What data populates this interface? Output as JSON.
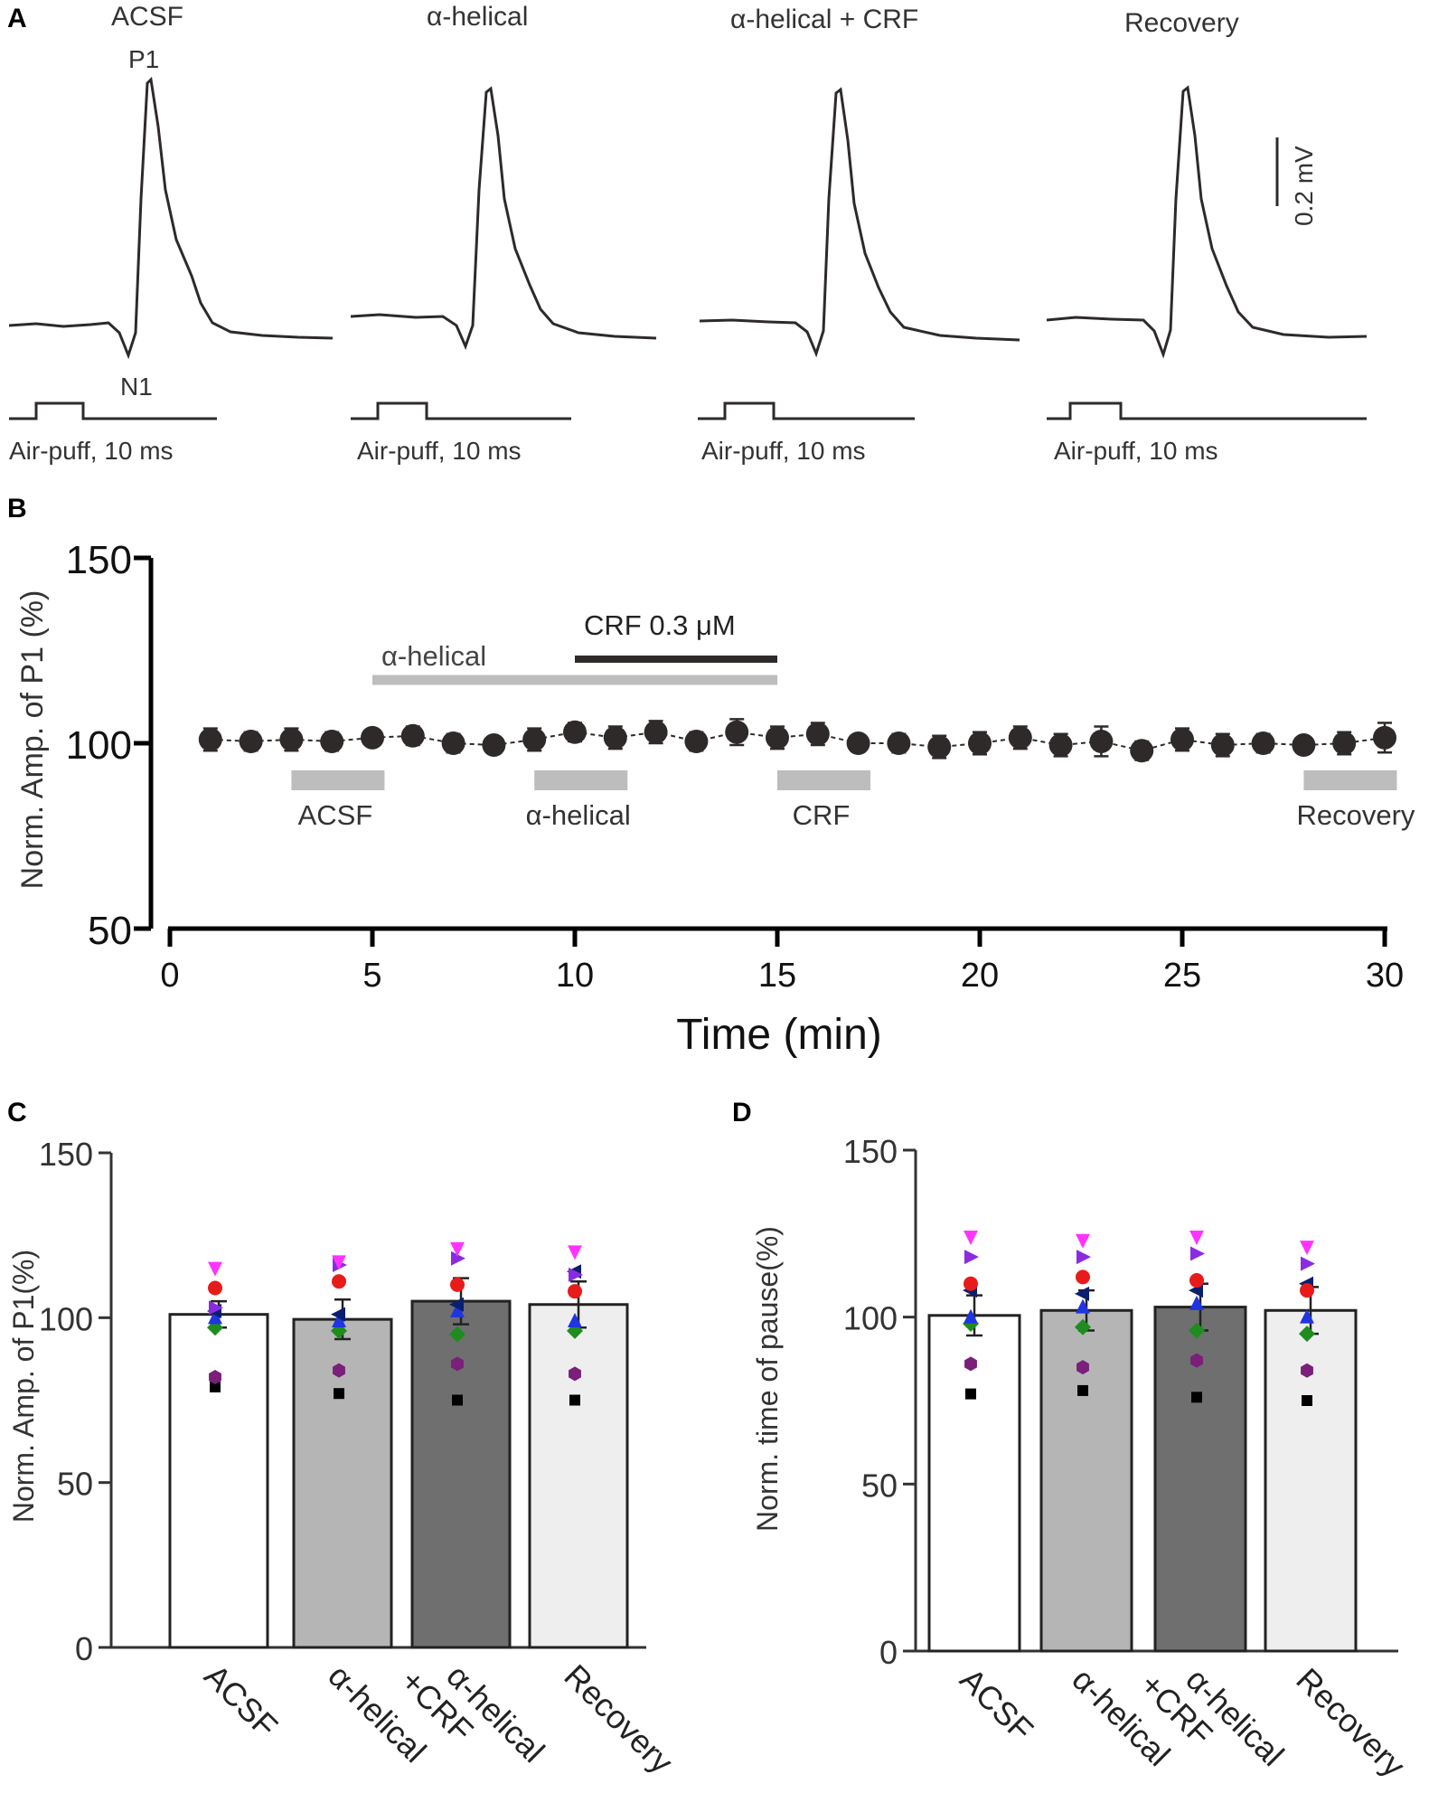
{
  "figure": {
    "colors": {
      "ink": "#2f2a2a",
      "lightgray": "#bdbdbd",
      "midgray": "#b5b5b5",
      "darkgray": "#6f6f6f",
      "palegray": "#eeeeee"
    }
  },
  "panel_a": {
    "label": "A",
    "n1_label": "N1",
    "p1_label": "P1",
    "scale_label": "0.2 mV",
    "traces": [
      {
        "title": "ACSF",
        "stim_label": "Air-puff, 10 ms"
      },
      {
        "title": "α-helical",
        "stim_label": "Air-puff, 10 ms"
      },
      {
        "title": "α-helical + CRF",
        "stim_label": "Air-puff, 10 ms"
      },
      {
        "title": "Recovery",
        "stim_label": "Air-puff, 10 ms"
      }
    ]
  },
  "panel_b": {
    "label": "B",
    "drug_bars": [
      {
        "label": "α-helical",
        "start": 5,
        "end": 15
      },
      {
        "label": "CRF 0.3 μM",
        "start": 10,
        "end": 15
      }
    ],
    "windows": [
      {
        "label": "ACSF",
        "start": 3,
        "end": 5.3
      },
      {
        "label": "α-helical",
        "start": 9,
        "end": 11.3
      },
      {
        "label": "CRF",
        "start": 15,
        "end": 17.3
      },
      {
        "label": "Recovery",
        "start": 28,
        "end": 30.3
      }
    ]
  },
  "panel_c": {
    "label": "C",
    "categories": [
      "ACSF",
      "α-helical",
      "α-helical +CRF",
      "Recovery"
    ],
    "x_labels": [
      [
        "ACSF"
      ],
      [
        "α-helical"
      ],
      [
        "α-helical",
        "+CRF"
      ],
      [
        "Recovery"
      ]
    ]
  },
  "panel_d": {
    "label": "D",
    "categories": [
      "ACSF",
      "α-helical",
      "α-helical +CRF",
      "Recovery"
    ],
    "x_labels": [
      [
        "ACSF"
      ],
      [
        "α-helical"
      ],
      [
        "α-helical",
        "+CRF"
      ],
      [
        "Recovery"
      ]
    ]
  },
  "chart_data": [
    {
      "id": "B",
      "type": "scatter",
      "title": "",
      "xlabel": "Time (min)",
      "ylabel": "Norm. Amp. of P1 (%)",
      "xlim": [
        0,
        30
      ],
      "ylim": [
        50,
        150
      ],
      "xticks": [
        0,
        5,
        10,
        15,
        20,
        25,
        30
      ],
      "yticks": [
        50,
        100,
        150
      ],
      "x": [
        1,
        2,
        3,
        4,
        5,
        6,
        7,
        8,
        9,
        10,
        11,
        12,
        13,
        14,
        15,
        16,
        17,
        18,
        19,
        20,
        21,
        22,
        23,
        24,
        25,
        26,
        27,
        28,
        29,
        30
      ],
      "y": [
        101,
        100.5,
        101,
        100.5,
        101.5,
        102,
        100,
        99.5,
        101,
        103,
        101.5,
        103,
        100.5,
        103,
        101.5,
        102.5,
        100,
        100,
        99,
        100,
        101.5,
        99.5,
        100.5,
        98,
        101,
        99.5,
        100,
        99.5,
        100,
        101.5
      ],
      "err": [
        3,
        2.5,
        3,
        2.5,
        2,
        2.5,
        2.5,
        2,
        3,
        2.5,
        3,
        3,
        2.5,
        3.5,
        3,
        3,
        2,
        2.5,
        3,
        3,
        3,
        3,
        4,
        2.5,
        3,
        3,
        2.5,
        2,
        3,
        4
      ]
    },
    {
      "id": "C",
      "type": "bar",
      "title": "",
      "xlabel": "",
      "ylabel": "Norm. Amp. of P1(%)",
      "ylim": [
        0,
        150
      ],
      "yticks": [
        0,
        50,
        100,
        150
      ],
      "categories": [
        "ACSF",
        "α-helical",
        "α-helical +CRF",
        "Recovery"
      ],
      "values": [
        101,
        99.5,
        105,
        104
      ],
      "errors": [
        4,
        6,
        7,
        7
      ],
      "individual_points": [
        {
          "marker": "square",
          "color": "#000000",
          "values": [
            79,
            77,
            75,
            75
          ]
        },
        {
          "marker": "hexagon",
          "color": "#7a1f7a",
          "values": [
            82,
            84,
            86,
            83
          ]
        },
        {
          "marker": "diamond",
          "color": "#1e8c1e",
          "values": [
            97,
            96,
            95,
            96
          ]
        },
        {
          "marker": "triangle-up",
          "color": "#1f35e0",
          "values": [
            100,
            99,
            102,
            99
          ]
        },
        {
          "marker": "triangle-left",
          "color": "#0a1f6e",
          "values": [
            102,
            101,
            104,
            114
          ]
        },
        {
          "marker": "circle",
          "color": "#e81b1b",
          "values": [
            109,
            111,
            110,
            108
          ]
        },
        {
          "marker": "triangle-right",
          "color": "#8a2be2",
          "values": [
            103,
            116,
            118,
            113
          ]
        },
        {
          "marker": "triangle-down",
          "color": "#ff33ff",
          "values": [
            115,
            117,
            121,
            120
          ]
        }
      ]
    },
    {
      "id": "D",
      "type": "bar",
      "title": "",
      "xlabel": "",
      "ylabel": "Norm. time of pause(%)",
      "ylim": [
        0,
        150
      ],
      "yticks": [
        0,
        50,
        100,
        150
      ],
      "categories": [
        "ACSF",
        "α-helical",
        "α-helical +CRF",
        "Recovery"
      ],
      "values": [
        100.5,
        102,
        103,
        102
      ],
      "errors": [
        6,
        6,
        7,
        7
      ],
      "individual_points": [
        {
          "marker": "square",
          "color": "#000000",
          "values": [
            77,
            78,
            76,
            75
          ]
        },
        {
          "marker": "hexagon",
          "color": "#7a1f7a",
          "values": [
            86,
            85,
            87,
            84
          ]
        },
        {
          "marker": "diamond",
          "color": "#1e8c1e",
          "values": [
            98,
            97,
            96,
            95
          ]
        },
        {
          "marker": "triangle-up",
          "color": "#1f35e0",
          "values": [
            100,
            103,
            104,
            100
          ]
        },
        {
          "marker": "triangle-left",
          "color": "#0a1f6e",
          "values": [
            108,
            107,
            108,
            110
          ]
        },
        {
          "marker": "circle",
          "color": "#e81b1b",
          "values": [
            110,
            112,
            111,
            108
          ]
        },
        {
          "marker": "triangle-right",
          "color": "#8a2be2",
          "values": [
            118,
            118,
            119,
            116
          ]
        },
        {
          "marker": "triangle-down",
          "color": "#ff33ff",
          "values": [
            124,
            123,
            124,
            121
          ]
        }
      ]
    }
  ]
}
